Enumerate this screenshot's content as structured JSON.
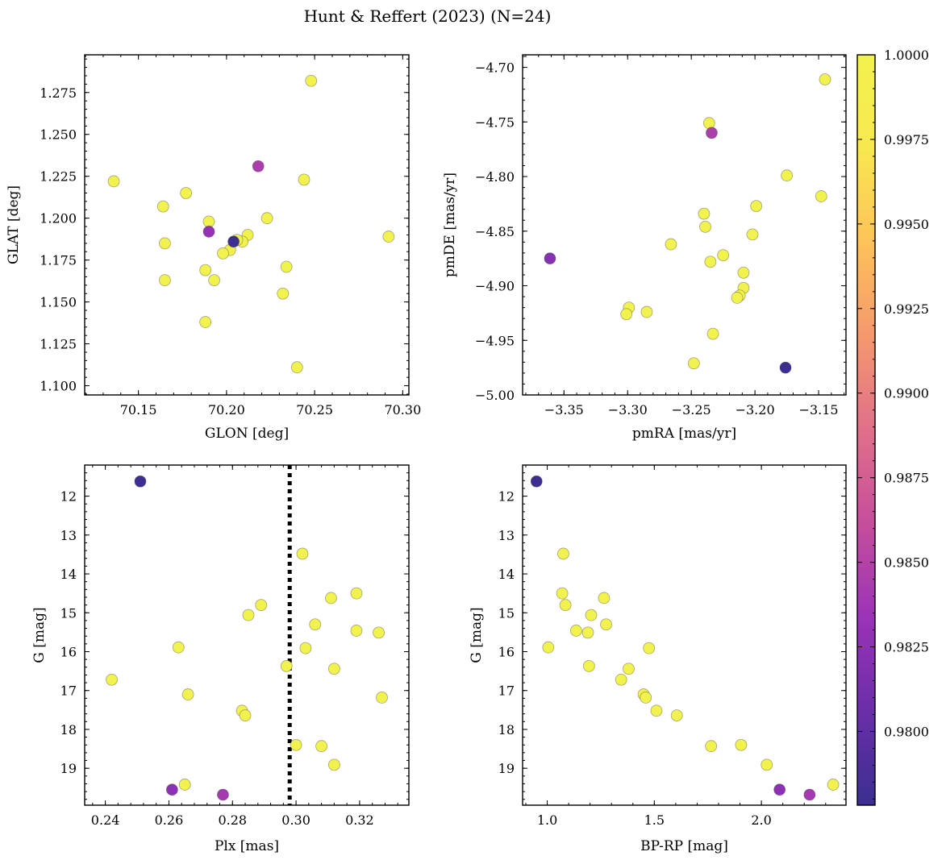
{
  "figure": {
    "title": "Hunt & Reffert (2023) (N=24)"
  },
  "colorbar": {
    "min": 0.97782,
    "max": 1.0,
    "ticks": [
      1.0,
      0.9975,
      0.995,
      0.9925,
      0.99,
      0.9875,
      0.985,
      0.9825,
      0.98
    ],
    "tick_labels": [
      "1.0000",
      "0.9975",
      "0.9950",
      "0.9925",
      "0.9900",
      "0.9875",
      "0.9850",
      "0.9825",
      "0.9800"
    ],
    "colormap": "plasma (clipped)",
    "colors": [
      "#3a2f8f",
      "#6a2ea8",
      "#9b33b8",
      "#c54e9b",
      "#e0708a",
      "#f4986e",
      "#fdc25a",
      "#f8e850",
      "#f2f24e"
    ]
  },
  "chart_data": [
    {
      "type": "scatter",
      "xlabel": "GLON [deg]",
      "ylabel": "GLAT [deg]",
      "xlim": [
        70.1195,
        70.3035
      ],
      "ylim": [
        1.0945,
        1.2975
      ],
      "xticks": [
        70.15,
        70.2,
        70.25,
        70.3
      ],
      "xtick_labels": [
        "70.15",
        "70.20",
        "70.25",
        "70.30"
      ],
      "yticks": [
        1.1,
        1.125,
        1.15,
        1.175,
        1.2,
        1.225,
        1.25,
        1.275
      ],
      "ytick_labels": [
        "1.100",
        "1.125",
        "1.150",
        "1.175",
        "1.200",
        "1.225",
        "1.250",
        "1.275"
      ],
      "points": [
        {
          "x": 70.248,
          "y": 1.282,
          "c": 1.0
        },
        {
          "x": 70.136,
          "y": 1.222,
          "c": 1.0
        },
        {
          "x": 70.244,
          "y": 1.223,
          "c": 1.0
        },
        {
          "x": 70.177,
          "y": 1.215,
          "c": 1.0
        },
        {
          "x": 70.164,
          "y": 1.207,
          "c": 1.0
        },
        {
          "x": 70.223,
          "y": 1.2,
          "c": 1.0
        },
        {
          "x": 70.19,
          "y": 1.198,
          "c": 1.0
        },
        {
          "x": 70.165,
          "y": 1.185,
          "c": 1.0
        },
        {
          "x": 70.212,
          "y": 1.19,
          "c": 1.0
        },
        {
          "x": 70.209,
          "y": 1.186,
          "c": 1.0
        },
        {
          "x": 70.292,
          "y": 1.189,
          "c": 1.0
        },
        {
          "x": 70.202,
          "y": 1.181,
          "c": 1.0
        },
        {
          "x": 70.198,
          "y": 1.179,
          "c": 1.0
        },
        {
          "x": 70.234,
          "y": 1.171,
          "c": 1.0
        },
        {
          "x": 70.188,
          "y": 1.169,
          "c": 1.0
        },
        {
          "x": 70.165,
          "y": 1.163,
          "c": 1.0
        },
        {
          "x": 70.193,
          "y": 1.163,
          "c": 1.0
        },
        {
          "x": 70.232,
          "y": 1.155,
          "c": 1.0
        },
        {
          "x": 70.188,
          "y": 1.138,
          "c": 1.0
        },
        {
          "x": 70.24,
          "y": 1.111,
          "c": 1.0
        },
        {
          "x": 70.206,
          "y": 1.187,
          "c": 1.0
        },
        {
          "x": 70.204,
          "y": 1.186,
          "c": 0.978
        },
        {
          "x": 70.19,
          "y": 1.192,
          "c": 0.983
        },
        {
          "x": 70.218,
          "y": 1.231,
          "c": 0.9845
        }
      ]
    },
    {
      "type": "scatter",
      "xlabel": "pmRA [mas/yr]",
      "ylabel": "pmDE [mas/yr]",
      "xlim": [
        -3.3825,
        -3.1285
      ],
      "ylim": [
        -5.0,
        -4.6885
      ],
      "xticks": [
        -3.35,
        -3.3,
        -3.25,
        -3.2,
        -3.15
      ],
      "xtick_labels": [
        "−3.35",
        "−3.30",
        "−3.25",
        "−3.20",
        "−3.15"
      ],
      "yticks": [
        -5.0,
        -4.95,
        -4.9,
        -4.85,
        -4.8,
        -4.75,
        -4.7
      ],
      "ytick_labels": [
        "−5.00",
        "−4.95",
        "−4.90",
        "−4.85",
        "−4.80",
        "−4.75",
        "−4.70"
      ],
      "points": [
        {
          "x": -3.145,
          "y": -4.711,
          "c": 1.0
        },
        {
          "x": -3.236,
          "y": -4.751,
          "c": 1.0
        },
        {
          "x": -3.175,
          "y": -4.799,
          "c": 1.0
        },
        {
          "x": -3.148,
          "y": -4.818,
          "c": 1.0
        },
        {
          "x": -3.199,
          "y": -4.827,
          "c": 1.0
        },
        {
          "x": -3.24,
          "y": -4.834,
          "c": 1.0
        },
        {
          "x": -3.239,
          "y": -4.846,
          "c": 1.0
        },
        {
          "x": -3.202,
          "y": -4.853,
          "c": 1.0
        },
        {
          "x": -3.266,
          "y": -4.862,
          "c": 1.0
        },
        {
          "x": -3.225,
          "y": -4.872,
          "c": 1.0
        },
        {
          "x": -3.235,
          "y": -4.878,
          "c": 1.0
        },
        {
          "x": -3.209,
          "y": -4.888,
          "c": 1.0
        },
        {
          "x": -3.209,
          "y": -4.902,
          "c": 1.0
        },
        {
          "x": -3.212,
          "y": -4.909,
          "c": 1.0
        },
        {
          "x": -3.214,
          "y": -4.911,
          "c": 1.0
        },
        {
          "x": -3.299,
          "y": -4.92,
          "c": 1.0
        },
        {
          "x": -3.285,
          "y": -4.924,
          "c": 1.0
        },
        {
          "x": -3.301,
          "y": -4.926,
          "c": 1.0
        },
        {
          "x": -3.233,
          "y": -4.944,
          "c": 1.0
        },
        {
          "x": -3.248,
          "y": -4.971,
          "c": 1.0
        },
        {
          "x": -3.176,
          "y": -4.975,
          "c": 0.978
        },
        {
          "x": -3.361,
          "y": -4.875,
          "c": 0.9822
        },
        {
          "x": -3.234,
          "y": -4.76,
          "c": 0.9845
        }
      ]
    },
    {
      "type": "scatter",
      "xlabel": "Plx [mas]",
      "ylabel": "G [mag]",
      "xlim": [
        0.2335,
        0.3355
      ],
      "ylim": [
        19.95,
        11.2
      ],
      "y_inverted": true,
      "vline": {
        "x": 0.298,
        "style": "dotted"
      },
      "xticks": [
        0.24,
        0.26,
        0.28,
        0.3,
        0.32
      ],
      "xtick_labels": [
        "0.24",
        "0.26",
        "0.28",
        "0.30",
        "0.32"
      ],
      "yticks": [
        12,
        13,
        14,
        15,
        16,
        17,
        18,
        19
      ],
      "ytick_labels": [
        "12",
        "13",
        "14",
        "15",
        "16",
        "17",
        "18",
        "19"
      ],
      "points": [
        {
          "x": 0.302,
          "y": 13.48,
          "c": 1.0
        },
        {
          "x": 0.319,
          "y": 14.5,
          "c": 1.0
        },
        {
          "x": 0.311,
          "y": 14.62,
          "c": 1.0
        },
        {
          "x": 0.289,
          "y": 14.8,
          "c": 1.0
        },
        {
          "x": 0.285,
          "y": 15.06,
          "c": 1.0
        },
        {
          "x": 0.306,
          "y": 15.3,
          "c": 1.0
        },
        {
          "x": 0.319,
          "y": 15.46,
          "c": 1.0
        },
        {
          "x": 0.326,
          "y": 15.51,
          "c": 1.0
        },
        {
          "x": 0.263,
          "y": 15.89,
          "c": 1.0
        },
        {
          "x": 0.303,
          "y": 15.91,
          "c": 1.0
        },
        {
          "x": 0.297,
          "y": 16.37,
          "c": 1.0
        },
        {
          "x": 0.312,
          "y": 16.44,
          "c": 1.0
        },
        {
          "x": 0.242,
          "y": 16.72,
          "c": 1.0
        },
        {
          "x": 0.266,
          "y": 17.1,
          "c": 1.0
        },
        {
          "x": 0.327,
          "y": 17.18,
          "c": 1.0
        },
        {
          "x": 0.283,
          "y": 17.52,
          "c": 1.0
        },
        {
          "x": 0.284,
          "y": 17.64,
          "c": 1.0
        },
        {
          "x": 0.3,
          "y": 18.4,
          "c": 1.0
        },
        {
          "x": 0.308,
          "y": 18.43,
          "c": 1.0
        },
        {
          "x": 0.312,
          "y": 18.91,
          "c": 1.0
        },
        {
          "x": 0.265,
          "y": 19.42,
          "c": 1.0
        },
        {
          "x": 0.251,
          "y": 11.62,
          "c": 0.978
        },
        {
          "x": 0.261,
          "y": 19.55,
          "c": 0.9825
        },
        {
          "x": 0.277,
          "y": 19.68,
          "c": 0.984
        }
      ]
    },
    {
      "type": "scatter",
      "xlabel": "BP-RP [mag]",
      "ylabel": "G [mag]",
      "xlim": [
        0.885,
        2.395
      ],
      "ylim": [
        19.95,
        11.2
      ],
      "y_inverted": true,
      "xticks": [
        1.0,
        1.5,
        2.0
      ],
      "xtick_labels": [
        "1.0",
        "1.5",
        "2.0"
      ],
      "yticks": [
        12,
        13,
        14,
        15,
        16,
        17,
        18,
        19
      ],
      "ytick_labels": [
        "12",
        "13",
        "14",
        "15",
        "16",
        "17",
        "18",
        "19"
      ],
      "points": [
        {
          "x": 1.075,
          "y": 13.48,
          "c": 1.0
        },
        {
          "x": 1.07,
          "y": 14.5,
          "c": 1.0
        },
        {
          "x": 1.265,
          "y": 14.62,
          "c": 1.0
        },
        {
          "x": 1.085,
          "y": 14.8,
          "c": 1.0
        },
        {
          "x": 1.205,
          "y": 15.06,
          "c": 1.0
        },
        {
          "x": 1.275,
          "y": 15.3,
          "c": 1.0
        },
        {
          "x": 1.135,
          "y": 15.46,
          "c": 1.0
        },
        {
          "x": 1.19,
          "y": 15.51,
          "c": 1.0
        },
        {
          "x": 1.005,
          "y": 15.89,
          "c": 1.0
        },
        {
          "x": 1.475,
          "y": 15.91,
          "c": 1.0
        },
        {
          "x": 1.195,
          "y": 16.37,
          "c": 1.0
        },
        {
          "x": 1.38,
          "y": 16.44,
          "c": 1.0
        },
        {
          "x": 1.345,
          "y": 16.72,
          "c": 1.0
        },
        {
          "x": 1.45,
          "y": 17.1,
          "c": 1.0
        },
        {
          "x": 1.46,
          "y": 17.18,
          "c": 1.0
        },
        {
          "x": 1.51,
          "y": 17.52,
          "c": 1.0
        },
        {
          "x": 1.605,
          "y": 17.64,
          "c": 1.0
        },
        {
          "x": 1.765,
          "y": 18.43,
          "c": 1.0
        },
        {
          "x": 1.905,
          "y": 18.4,
          "c": 1.0
        },
        {
          "x": 2.025,
          "y": 18.91,
          "c": 1.0
        },
        {
          "x": 2.335,
          "y": 19.42,
          "c": 1.0
        },
        {
          "x": 0.95,
          "y": 11.62,
          "c": 0.978
        },
        {
          "x": 2.085,
          "y": 19.55,
          "c": 0.9825
        },
        {
          "x": 2.225,
          "y": 19.68,
          "c": 0.984
        }
      ]
    }
  ]
}
